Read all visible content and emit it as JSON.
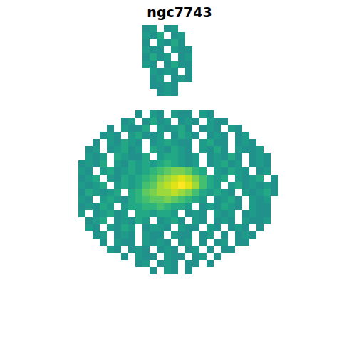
{
  "chart_data": {
    "type": "heatmap",
    "title": "ngc7743",
    "color": "viridis",
    "tick_labels": false,
    "zlim": [
      0,
      1
    ],
    "cells": [
      [
        null,
        null,
        null,
        null,
        null,
        null,
        null,
        null,
        null,
        null,
        0.5,
        0.55,
        null,
        0.5,
        0.55,
        null,
        null,
        null,
        null,
        null,
        null,
        null,
        null,
        null,
        null,
        null,
        null,
        null,
        null
      ],
      [
        null,
        null,
        null,
        null,
        null,
        null,
        null,
        null,
        null,
        null,
        0.55,
        0.5,
        0.6,
        null,
        0.5,
        0.55,
        null,
        null,
        null,
        null,
        null,
        null,
        null,
        null,
        null,
        null,
        null,
        null,
        null
      ],
      [
        null,
        null,
        null,
        null,
        null,
        null,
        null,
        null,
        null,
        null,
        0.5,
        null,
        0.55,
        0.5,
        0.6,
        0.5,
        null,
        null,
        null,
        null,
        null,
        null,
        null,
        null,
        null,
        null,
        null,
        null,
        null
      ],
      [
        null,
        null,
        null,
        null,
        null,
        null,
        null,
        null,
        null,
        null,
        0.55,
        0.5,
        0.5,
        null,
        0.55,
        0.5,
        0.5,
        null,
        null,
        null,
        null,
        null,
        null,
        null,
        null,
        null,
        null,
        null,
        null
      ],
      [
        null,
        null,
        null,
        null,
        null,
        null,
        null,
        null,
        null,
        null,
        0.5,
        0.6,
        0.5,
        0.55,
        null,
        0.5,
        0.55,
        null,
        null,
        null,
        null,
        null,
        null,
        null,
        null,
        null,
        null,
        null,
        null
      ],
      [
        null,
        null,
        null,
        null,
        null,
        null,
        null,
        null,
        null,
        null,
        0.55,
        0.5,
        null,
        0.5,
        0.6,
        0.5,
        0.5,
        null,
        null,
        null,
        null,
        null,
        null,
        null,
        null,
        null,
        null,
        null,
        null
      ],
      [
        null,
        null,
        null,
        null,
        null,
        null,
        null,
        null,
        null,
        null,
        null,
        0.55,
        0.5,
        0.55,
        0.5,
        null,
        0.5,
        null,
        null,
        null,
        null,
        null,
        null,
        null,
        null,
        null,
        null,
        null,
        null
      ],
      [
        null,
        null,
        null,
        null,
        null,
        null,
        null,
        null,
        null,
        null,
        null,
        0.5,
        0.55,
        null,
        0.5,
        0.55,
        0.5,
        null,
        null,
        null,
        null,
        null,
        null,
        null,
        null,
        null,
        null,
        null,
        null
      ],
      [
        null,
        null,
        null,
        null,
        null,
        null,
        null,
        null,
        null,
        null,
        null,
        0.5,
        0.5,
        0.55,
        0.5,
        null,
        null,
        null,
        null,
        null,
        null,
        null,
        null,
        null,
        null,
        null,
        null,
        null,
        null
      ],
      [
        null,
        null,
        null,
        null,
        null,
        null,
        null,
        null,
        null,
        null,
        null,
        null,
        0.5,
        0.55,
        0.5,
        null,
        null,
        null,
        null,
        null,
        null,
        null,
        null,
        null,
        null,
        null,
        null,
        null,
        null
      ],
      [
        null,
        null,
        null,
        null,
        null,
        null,
        null,
        null,
        null,
        null,
        null,
        null,
        null,
        null,
        null,
        null,
        null,
        null,
        null,
        null,
        null,
        null,
        null,
        null,
        null,
        null,
        null,
        null,
        null
      ],
      [
        null,
        null,
        null,
        null,
        null,
        null,
        null,
        null,
        null,
        null,
        null,
        null,
        null,
        null,
        null,
        null,
        null,
        null,
        null,
        null,
        null,
        null,
        null,
        null,
        null,
        null,
        null,
        null,
        null
      ],
      [
        null,
        null,
        null,
        null,
        null,
        null,
        null,
        null,
        null,
        0.5,
        null,
        0.55,
        0.5,
        null,
        0.55,
        0.5,
        0.5,
        null,
        0.55,
        0.5,
        null,
        null,
        null,
        null,
        null,
        null,
        null,
        null,
        null
      ],
      [
        null,
        null,
        null,
        null,
        null,
        null,
        null,
        0.5,
        0.55,
        null,
        0.5,
        0.6,
        0.5,
        0.55,
        null,
        0.5,
        0.55,
        0.5,
        null,
        0.55,
        0.5,
        0.5,
        null,
        null,
        null,
        null,
        null,
        null,
        null
      ],
      [
        null,
        null,
        null,
        null,
        null,
        0.5,
        null,
        0.55,
        0.5,
        0.5,
        0.6,
        null,
        0.55,
        0.5,
        0.55,
        0.6,
        0.5,
        null,
        0.5,
        0.55,
        0.5,
        null,
        0.55,
        0.5,
        null,
        null,
        null,
        null,
        null
      ],
      [
        null,
        null,
        null,
        null,
        0.5,
        0.55,
        0.5,
        null,
        0.55,
        0.6,
        0.5,
        0.5,
        0.55,
        null,
        0.5,
        0.6,
        0.55,
        0.5,
        null,
        0.5,
        0.55,
        0.5,
        null,
        0.5,
        0.55,
        null,
        null,
        null,
        null
      ],
      [
        null,
        null,
        null,
        0.5,
        null,
        0.55,
        0.5,
        0.6,
        0.55,
        0.5,
        null,
        0.5,
        0.55,
        0.6,
        0.55,
        0.5,
        0.5,
        null,
        0.55,
        0.6,
        0.5,
        0.5,
        null,
        0.5,
        0.55,
        0.5,
        null,
        null,
        null
      ],
      [
        null,
        null,
        0.5,
        0.55,
        null,
        0.5,
        0.55,
        0.6,
        0.5,
        0.55,
        null,
        0.6,
        0.55,
        0.5,
        0.6,
        0.55,
        0.5,
        null,
        0.55,
        0.5,
        0.6,
        0.5,
        null,
        0.55,
        0.5,
        0.5,
        0.55,
        null,
        null
      ],
      [
        null,
        null,
        0.55,
        0.5,
        0.55,
        null,
        0.6,
        0.55,
        0.5,
        0.5,
        0.6,
        null,
        0.55,
        0.6,
        0.6,
        0.55,
        0.5,
        0.55,
        null,
        0.5,
        0.55,
        0.5,
        0.6,
        0.5,
        null,
        0.5,
        0.55,
        0.5,
        null
      ],
      [
        null,
        0.5,
        0.55,
        0.5,
        0.6,
        null,
        0.55,
        0.5,
        0.6,
        0.55,
        0.6,
        0.55,
        0.6,
        0.65,
        0.6,
        0.55,
        0.5,
        0.55,
        null,
        0.5,
        0.55,
        0.6,
        0.5,
        0.55,
        null,
        0.5,
        0.55,
        0.5,
        null
      ],
      [
        null,
        0.55,
        0.5,
        null,
        0.55,
        0.6,
        0.5,
        0.55,
        0.6,
        0.55,
        0.6,
        0.65,
        0.7,
        0.75,
        0.8,
        0.8,
        0.75,
        0.65,
        0.6,
        null,
        0.55,
        0.5,
        0.6,
        0.55,
        0.5,
        null,
        0.5,
        0.55,
        null
      ],
      [
        null,
        0.5,
        0.55,
        0.6,
        null,
        0.55,
        0.5,
        0.6,
        0.55,
        0.6,
        0.65,
        0.7,
        0.8,
        0.85,
        0.9,
        0.95,
        0.9,
        0.8,
        0.7,
        0.6,
        0.55,
        0.6,
        null,
        0.55,
        0.5,
        0.55,
        0.6,
        null,
        0.5
      ],
      [
        null,
        0.55,
        0.5,
        0.55,
        0.6,
        null,
        0.55,
        0.6,
        0.55,
        0.6,
        0.7,
        0.75,
        0.85,
        0.9,
        0.95,
        1.0,
        0.95,
        0.85,
        0.7,
        0.6,
        0.55,
        null,
        0.55,
        0.6,
        0.5,
        0.55,
        0.5,
        0.55,
        0.5
      ],
      [
        null,
        0.5,
        0.6,
        0.55,
        0.5,
        0.55,
        0.6,
        null,
        0.6,
        0.65,
        0.75,
        0.8,
        0.85,
        0.85,
        0.9,
        0.85,
        0.8,
        0.7,
        0.6,
        0.55,
        0.6,
        0.55,
        0.5,
        null,
        0.55,
        0.5,
        0.55,
        0.6,
        0.5
      ],
      [
        null,
        0.55,
        0.5,
        null,
        0.55,
        0.6,
        0.55,
        0.5,
        0.6,
        0.65,
        0.7,
        0.75,
        0.75,
        0.8,
        0.75,
        0.7,
        0.65,
        0.6,
        0.55,
        null,
        0.5,
        0.55,
        0.6,
        0.5,
        null,
        0.55,
        0.5,
        0.55,
        null
      ],
      [
        null,
        0.5,
        0.55,
        0.5,
        0.6,
        0.55,
        null,
        0.55,
        0.6,
        0.6,
        0.65,
        0.65,
        0.7,
        0.65,
        0.6,
        0.6,
        0.55,
        null,
        0.5,
        0.55,
        0.5,
        0.6,
        0.55,
        0.5,
        null,
        0.55,
        0.5,
        0.5,
        null
      ],
      [
        null,
        0.55,
        null,
        0.5,
        0.55,
        0.6,
        0.5,
        0.55,
        null,
        0.6,
        0.6,
        0.55,
        0.6,
        0.6,
        0.55,
        null,
        0.5,
        0.55,
        0.5,
        null,
        0.55,
        0.5,
        0.55,
        null,
        0.5,
        0.55,
        0.5,
        0.5,
        null
      ],
      [
        null,
        null,
        0.5,
        0.55,
        0.6,
        null,
        0.5,
        0.55,
        0.5,
        0.6,
        0.55,
        null,
        0.5,
        0.55,
        0.6,
        0.5,
        null,
        0.55,
        0.5,
        null,
        0.5,
        0.55,
        0.5,
        null,
        0.55,
        0.5,
        0.5,
        0.55,
        null
      ],
      [
        null,
        null,
        0.55,
        0.5,
        null,
        0.55,
        0.5,
        0.6,
        0.55,
        null,
        0.5,
        0.55,
        0.55,
        0.5,
        null,
        0.55,
        0.5,
        0.5,
        null,
        0.55,
        0.5,
        null,
        0.5,
        0.55,
        0.5,
        null,
        0.5,
        null,
        null
      ],
      [
        null,
        null,
        null,
        0.5,
        0.55,
        null,
        0.5,
        0.55,
        0.5,
        null,
        0.55,
        0.5,
        0.5,
        null,
        0.55,
        0.5,
        0.5,
        null,
        0.5,
        0.55,
        null,
        0.5,
        null,
        0.5,
        0.55,
        0.5,
        null,
        null,
        null
      ],
      [
        null,
        null,
        null,
        null,
        0.5,
        null,
        0.55,
        0.5,
        0.5,
        null,
        0.55,
        0.5,
        0.55,
        0.5,
        null,
        0.5,
        0.55,
        null,
        0.5,
        null,
        0.5,
        0.55,
        null,
        0.5,
        0.5,
        null,
        null,
        null,
        null
      ],
      [
        null,
        null,
        null,
        null,
        null,
        0.55,
        0.5,
        null,
        0.5,
        0.55,
        0.5,
        null,
        0.5,
        0.55,
        0.5,
        null,
        0.5,
        0.55,
        null,
        0.5,
        null,
        0.5,
        0.5,
        null,
        null,
        null,
        null,
        null,
        null
      ],
      [
        null,
        null,
        null,
        null,
        null,
        null,
        null,
        0.5,
        null,
        0.55,
        0.5,
        0.5,
        null,
        0.55,
        0.5,
        0.5,
        null,
        0.5,
        0.55,
        null,
        0.5,
        null,
        null,
        null,
        null,
        null,
        null,
        null,
        null
      ],
      [
        null,
        null,
        null,
        null,
        null,
        null,
        null,
        null,
        null,
        0.5,
        0.55,
        null,
        0.5,
        0.55,
        0.5,
        null,
        0.5,
        0.5,
        null,
        0.5,
        null,
        null,
        null,
        null,
        null,
        null,
        null,
        null,
        null
      ],
      [
        null,
        null,
        null,
        null,
        null,
        null,
        null,
        null,
        null,
        null,
        null,
        0.5,
        null,
        0.55,
        0.5,
        null,
        0.5,
        null,
        null,
        null,
        null,
        null,
        null,
        null,
        null,
        null,
        null,
        null,
        null
      ]
    ]
  }
}
